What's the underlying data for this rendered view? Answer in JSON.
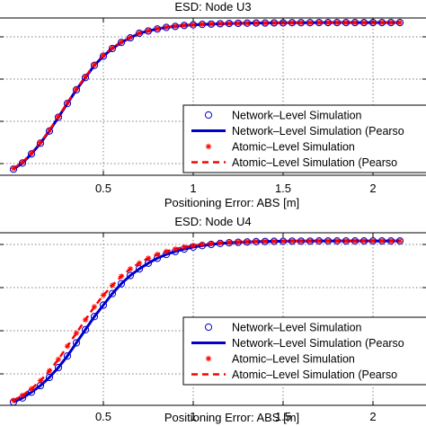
{
  "chart_data": [
    {
      "type": "line",
      "title": "ESD: Node U3",
      "xlabel": "Positioning Error: ABS [m]",
      "ylabel": "",
      "xlim": [
        -0.08,
        2.3
      ],
      "xticks": [
        0.5,
        1,
        1.5,
        2
      ],
      "xtick_labels": [
        "0.5",
        "1",
        "1.5",
        "2"
      ],
      "grid": true,
      "legend": {
        "placement": "bottom-right",
        "entries": [
          "Network–Level Simulation",
          "Network–Level Simulation (Pearso",
          "Atomic–Level Simulation",
          "Atomic–Level Simulation (Pearso"
        ]
      },
      "series": [
        {
          "name": "Network–Level Simulation",
          "marker": "circle",
          "color": "#0000cc",
          "x": [
            0,
            0.05,
            0.1,
            0.15,
            0.2,
            0.25,
            0.3,
            0.35,
            0.4,
            0.45,
            0.5,
            0.55,
            0.6,
            0.65,
            0.7,
            0.75,
            0.8,
            0.85,
            0.9,
            0.95,
            1.0,
            1.05,
            1.1,
            1.15,
            1.2,
            1.25,
            1.3,
            1.35,
            1.4,
            1.45,
            1.5,
            1.55,
            1.6,
            1.65,
            1.7,
            1.75,
            1.8,
            1.85,
            1.9,
            1.95,
            2.0,
            2.05,
            2.1,
            2.15
          ],
          "y": [
            0.04,
            0.08,
            0.14,
            0.21,
            0.29,
            0.38,
            0.47,
            0.56,
            0.64,
            0.72,
            0.78,
            0.83,
            0.87,
            0.9,
            0.93,
            0.945,
            0.958,
            0.968,
            0.975,
            0.981,
            0.985,
            0.988,
            0.99,
            0.992,
            0.994,
            0.995,
            0.996,
            0.997,
            0.997,
            0.998,
            0.998,
            0.999,
            0.999,
            0.999,
            1,
            1,
            1,
            1,
            1,
            1,
            1,
            1,
            1,
            1
          ]
        },
        {
          "name": "Network–Level Simulation (Pearso",
          "style": "solid",
          "color": "#0000cc",
          "x": [
            0,
            0.05,
            0.1,
            0.15,
            0.2,
            0.25,
            0.3,
            0.35,
            0.4,
            0.45,
            0.5,
            0.55,
            0.6,
            0.65,
            0.7,
            0.75,
            0.8,
            0.85,
            0.9,
            0.95,
            1.0,
            1.05,
            1.1,
            1.15,
            1.2,
            1.25,
            1.3,
            1.35,
            1.4,
            1.45,
            1.5,
            1.55,
            1.6,
            1.65,
            1.7,
            1.75,
            1.8,
            1.85,
            1.9,
            1.95,
            2.0,
            2.05,
            2.1,
            2.15
          ],
          "y": [
            0.04,
            0.08,
            0.14,
            0.21,
            0.29,
            0.38,
            0.47,
            0.56,
            0.64,
            0.72,
            0.78,
            0.83,
            0.87,
            0.9,
            0.93,
            0.945,
            0.958,
            0.968,
            0.975,
            0.981,
            0.985,
            0.988,
            0.99,
            0.992,
            0.994,
            0.995,
            0.996,
            0.997,
            0.997,
            0.998,
            0.998,
            0.999,
            0.999,
            0.999,
            1,
            1,
            1,
            1,
            1,
            1,
            1,
            1,
            1,
            1
          ]
        },
        {
          "name": "Atomic–Level Simulation",
          "marker": "star",
          "color": "#ff0000",
          "x": [
            0,
            0.05,
            0.1,
            0.15,
            0.2,
            0.25,
            0.3,
            0.35,
            0.4,
            0.45,
            0.5,
            0.55,
            0.6,
            0.65,
            0.7,
            0.75,
            0.8,
            0.85,
            0.9,
            0.95,
            1.0,
            1.05,
            1.1,
            1.15,
            1.2,
            1.25,
            1.3,
            1.35,
            1.4,
            1.45,
            1.5,
            1.55,
            1.6,
            1.65,
            1.7,
            1.75,
            1.8,
            1.85,
            1.9,
            1.95,
            2.0,
            2.05,
            2.1,
            2.15
          ],
          "y": [
            0.045,
            0.085,
            0.145,
            0.215,
            0.295,
            0.385,
            0.475,
            0.565,
            0.645,
            0.725,
            0.785,
            0.835,
            0.873,
            0.903,
            0.932,
            0.947,
            0.96,
            0.97,
            0.977,
            0.982,
            0.986,
            0.989,
            0.991,
            0.993,
            0.994,
            0.995,
            0.996,
            0.997,
            0.997,
            0.998,
            0.998,
            0.999,
            0.999,
            0.999,
            1,
            1,
            1,
            1,
            1,
            1,
            1,
            1,
            1,
            1
          ]
        },
        {
          "name": "Atomic–Level Simulation (Pearso",
          "style": "dashed",
          "color": "#ff0000",
          "x": [
            0,
            0.05,
            0.1,
            0.15,
            0.2,
            0.25,
            0.3,
            0.35,
            0.4,
            0.45,
            0.5,
            0.55,
            0.6,
            0.65,
            0.7,
            0.75,
            0.8,
            0.85,
            0.9,
            0.95,
            1.0,
            1.05,
            1.1,
            1.15,
            1.2,
            1.25,
            1.3,
            1.35,
            1.4,
            1.45,
            1.5,
            1.55,
            1.6,
            1.65,
            1.7,
            1.75,
            1.8,
            1.85,
            1.9,
            1.95,
            2.0,
            2.05,
            2.1,
            2.15
          ],
          "y": [
            0.045,
            0.085,
            0.145,
            0.215,
            0.295,
            0.385,
            0.475,
            0.565,
            0.645,
            0.725,
            0.785,
            0.835,
            0.873,
            0.903,
            0.932,
            0.947,
            0.96,
            0.97,
            0.977,
            0.982,
            0.986,
            0.989,
            0.991,
            0.993,
            0.994,
            0.995,
            0.996,
            0.997,
            0.997,
            0.998,
            0.998,
            0.999,
            0.999,
            0.999,
            1,
            1,
            1,
            1,
            1,
            1,
            1,
            1,
            1,
            1
          ]
        }
      ]
    },
    {
      "type": "line",
      "title": "ESD: Node U4",
      "xlabel": "Positioning Error: ABS [m]",
      "ylabel": "",
      "xlim": [
        -0.08,
        2.3
      ],
      "xticks": [
        0.5,
        1,
        1.5,
        2
      ],
      "xtick_labels": [
        "0.5",
        "1",
        "1.5",
        "2"
      ],
      "grid": true,
      "legend": {
        "placement": "bottom-right",
        "entries": [
          "Network–Level Simulation",
          "Network–Level Simulation (Pearso",
          "Atomic–Level Simulation",
          "Atomic–Level Simulation (Pearso"
        ]
      },
      "series": [
        {
          "name": "Network–Level Simulation",
          "marker": "circle",
          "color": "#0000cc",
          "x": [
            0,
            0.05,
            0.1,
            0.15,
            0.2,
            0.25,
            0.3,
            0.35,
            0.4,
            0.45,
            0.5,
            0.55,
            0.6,
            0.65,
            0.7,
            0.75,
            0.8,
            0.85,
            0.9,
            0.95,
            1.0,
            1.05,
            1.1,
            1.15,
            1.2,
            1.25,
            1.3,
            1.35,
            1.4,
            1.45,
            1.5,
            1.55,
            1.6,
            1.65,
            1.7,
            1.75,
            1.8,
            1.85,
            1.9,
            1.95,
            2.0,
            2.05,
            2.1,
            2.15
          ],
          "y": [
            0.02,
            0.045,
            0.08,
            0.12,
            0.17,
            0.23,
            0.3,
            0.38,
            0.46,
            0.54,
            0.61,
            0.68,
            0.74,
            0.79,
            0.83,
            0.865,
            0.895,
            0.918,
            0.936,
            0.951,
            0.963,
            0.972,
            0.979,
            0.985,
            0.989,
            0.992,
            0.994,
            0.996,
            0.997,
            0.998,
            0.998,
            0.999,
            0.999,
            0.999,
            1,
            1,
            1,
            1,
            1,
            1,
            1,
            1,
            1,
            1
          ]
        },
        {
          "name": "Network–Level Simulation (Pearso",
          "style": "solid",
          "color": "#0000cc",
          "x": [
            0,
            0.05,
            0.1,
            0.15,
            0.2,
            0.25,
            0.3,
            0.35,
            0.4,
            0.45,
            0.5,
            0.55,
            0.6,
            0.65,
            0.7,
            0.75,
            0.8,
            0.85,
            0.9,
            0.95,
            1.0,
            1.05,
            1.1,
            1.15,
            1.2,
            1.25,
            1.3,
            1.35,
            1.4,
            1.45,
            1.5,
            1.55,
            1.6,
            1.65,
            1.7,
            1.75,
            1.8,
            1.85,
            1.9,
            1.95,
            2.0,
            2.05,
            2.1,
            2.15
          ],
          "y": [
            0.02,
            0.045,
            0.08,
            0.12,
            0.17,
            0.23,
            0.3,
            0.38,
            0.46,
            0.54,
            0.61,
            0.68,
            0.74,
            0.79,
            0.83,
            0.865,
            0.895,
            0.918,
            0.936,
            0.951,
            0.963,
            0.972,
            0.979,
            0.985,
            0.989,
            0.992,
            0.994,
            0.996,
            0.997,
            0.998,
            0.998,
            0.999,
            0.999,
            0.999,
            1,
            1,
            1,
            1,
            1,
            1,
            1,
            1,
            1,
            1
          ]
        },
        {
          "name": "Atomic–Level Simulation",
          "marker": "star",
          "color": "#ff0000",
          "x": [
            0,
            0.05,
            0.1,
            0.15,
            0.2,
            0.25,
            0.3,
            0.35,
            0.4,
            0.45,
            0.5,
            0.55,
            0.6,
            0.65,
            0.7,
            0.75,
            0.8,
            0.85,
            0.9,
            0.95,
            1.0,
            1.05,
            1.1,
            1.15,
            1.2,
            1.25,
            1.3,
            1.35,
            1.4,
            1.45,
            1.5,
            1.55,
            1.6,
            1.65,
            1.7,
            1.75,
            1.8,
            1.85,
            1.9,
            1.95,
            2.0,
            2.05,
            2.1,
            2.15
          ],
          "y": [
            0.03,
            0.06,
            0.1,
            0.15,
            0.21,
            0.28,
            0.36,
            0.44,
            0.52,
            0.6,
            0.67,
            0.73,
            0.785,
            0.83,
            0.865,
            0.895,
            0.918,
            0.936,
            0.951,
            0.963,
            0.972,
            0.979,
            0.985,
            0.989,
            0.992,
            0.994,
            0.996,
            0.997,
            0.998,
            0.998,
            0.999,
            0.999,
            0.999,
            1,
            1,
            1,
            1,
            1,
            1,
            1,
            1,
            1,
            1,
            1
          ]
        },
        {
          "name": "Atomic–Level Simulation (Pearso",
          "style": "dashed",
          "color": "#ff0000",
          "x": [
            0,
            0.05,
            0.1,
            0.15,
            0.2,
            0.25,
            0.3,
            0.35,
            0.4,
            0.45,
            0.5,
            0.55,
            0.6,
            0.65,
            0.7,
            0.75,
            0.8,
            0.85,
            0.9,
            0.95,
            1.0,
            1.05,
            1.1,
            1.15,
            1.2,
            1.25,
            1.3,
            1.35,
            1.4,
            1.45,
            1.5,
            1.55,
            1.6,
            1.65,
            1.7,
            1.75,
            1.8,
            1.85,
            1.9,
            1.95,
            2.0,
            2.05,
            2.1,
            2.15
          ],
          "y": [
            0.03,
            0.06,
            0.1,
            0.15,
            0.21,
            0.28,
            0.36,
            0.44,
            0.52,
            0.6,
            0.67,
            0.73,
            0.785,
            0.83,
            0.865,
            0.895,
            0.918,
            0.936,
            0.951,
            0.963,
            0.972,
            0.979,
            0.985,
            0.989,
            0.992,
            0.994,
            0.996,
            0.997,
            0.998,
            0.998,
            0.999,
            0.999,
            0.999,
            1,
            1,
            1,
            1,
            1,
            1,
            1,
            1,
            1,
            1,
            1
          ]
        }
      ]
    }
  ]
}
